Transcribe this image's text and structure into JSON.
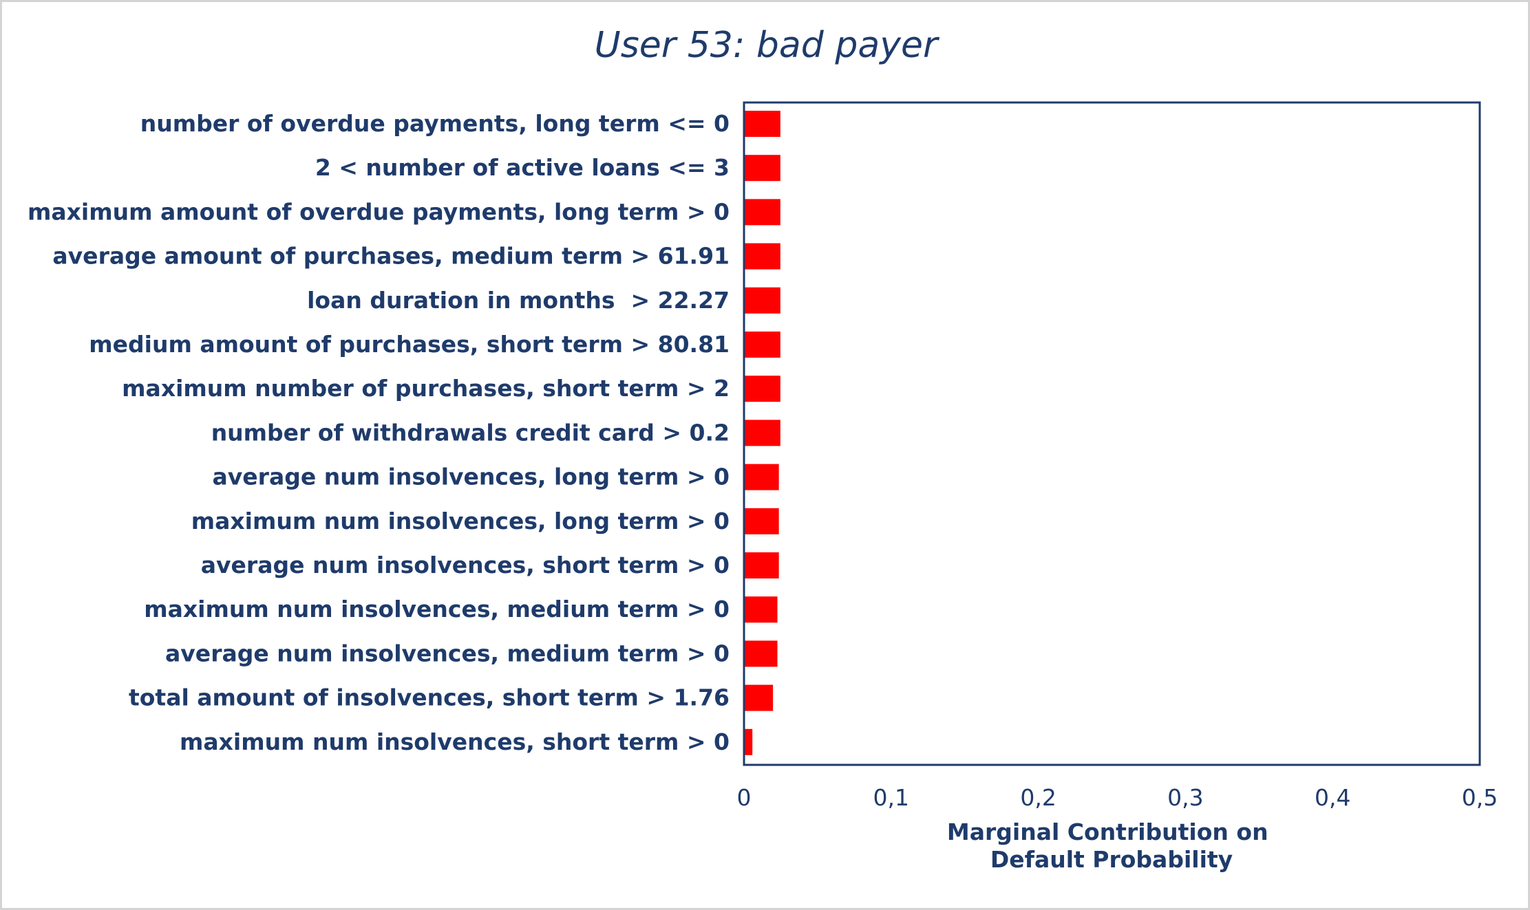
{
  "chart_data": {
    "type": "bar",
    "orientation": "horizontal",
    "title": "User 53: bad payer",
    "xlabel_lines": [
      "Marginal Contribution on",
      "Default Probability"
    ],
    "ylabel": "",
    "xlim": [
      0,
      0.5
    ],
    "xticks": [
      0,
      0.1,
      0.2,
      0.3,
      0.4,
      0.5
    ],
    "xtick_labels": [
      "0",
      "0,1",
      "0,2",
      "0,3",
      "0,4",
      "0,5"
    ],
    "grid": false,
    "legend": "none",
    "bar_color": "#ff0000",
    "axis_color": "#1f3b6b",
    "categories": [
      "number of overdue payments, long term <= 0",
      "2 < number of active loans <= 3",
      "maximum amount of overdue payments, long term > 0",
      "average amount of purchases, medium term > 61.91",
      "loan duration in months  > 22.27",
      "medium amount of purchases, short term > 80.81",
      "maximum number of purchases, short term > 2",
      "number of withdrawals credit card > 0.2",
      "average num insolvences, long term > 0",
      "maximum num insolvences, long term > 0",
      "average num insolvences, short term > 0",
      "maximum num insolvences, medium term > 0",
      "average num insolvences, medium term > 0",
      "total amount of insolvences, short term > 1.76",
      "maximum num insolvences, short term > 0"
    ],
    "values": [
      0.024,
      0.024,
      0.024,
      0.024,
      0.024,
      0.024,
      0.024,
      0.024,
      0.023,
      0.023,
      0.023,
      0.022,
      0.022,
      0.019,
      0.005
    ]
  }
}
